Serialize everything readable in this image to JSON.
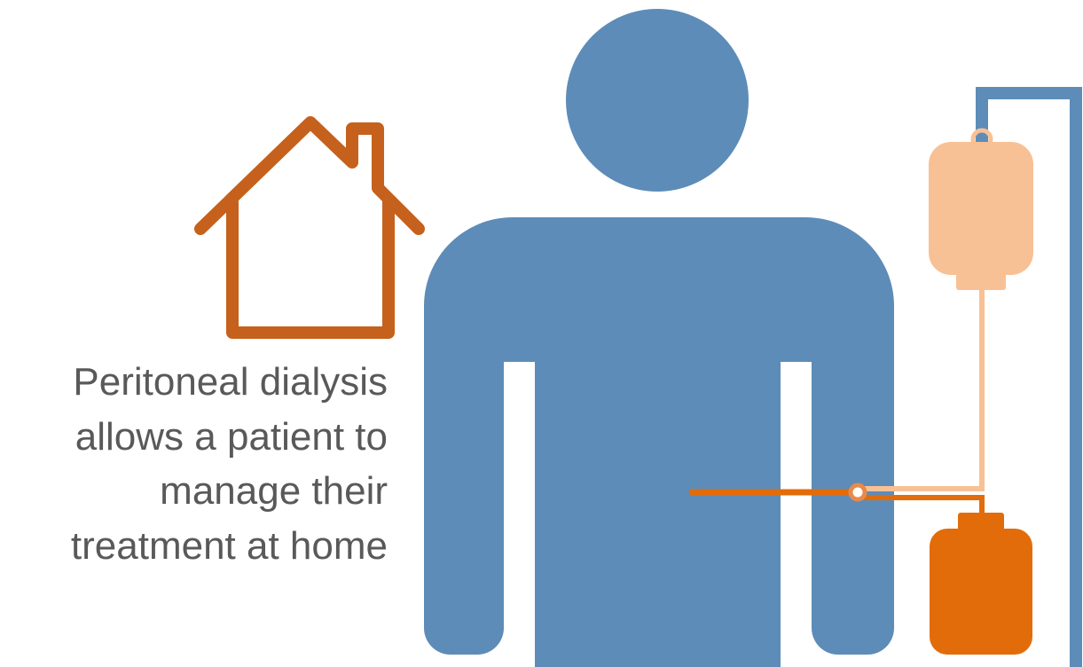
{
  "caption": {
    "lines": [
      "Peritoneal dialysis",
      "allows a patient to",
      "manage their",
      "treatment at home"
    ]
  }
}
